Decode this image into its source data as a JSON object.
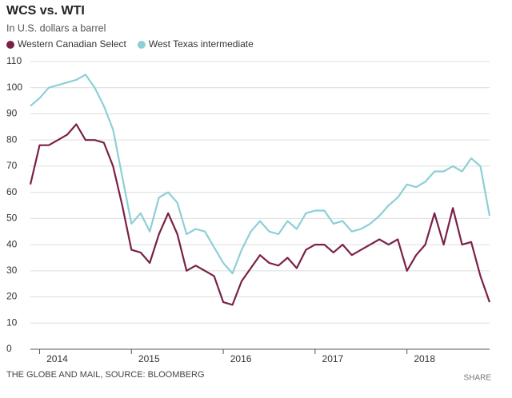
{
  "chart_data": {
    "type": "line",
    "title": "WCS vs. WTI",
    "subtitle": "In U.S. dollars a barrel",
    "source": "THE GLOBE AND MAIL, SOURCE: BLOOMBERG",
    "share": "SHARE",
    "x": [
      2013.9,
      2014.0,
      2014.1,
      2014.2,
      2014.3,
      2014.4,
      2014.5,
      2014.6,
      2014.7,
      2014.8,
      2014.9,
      2015.0,
      2015.1,
      2015.2,
      2015.3,
      2015.4,
      2015.5,
      2015.6,
      2015.7,
      2015.8,
      2015.9,
      2016.0,
      2016.1,
      2016.2,
      2016.3,
      2016.4,
      2016.5,
      2016.6,
      2016.7,
      2016.8,
      2016.9,
      2017.0,
      2017.1,
      2017.2,
      2017.3,
      2017.4,
      2017.5,
      2017.6,
      2017.7,
      2017.8,
      2017.9,
      2018.0,
      2018.1,
      2018.2,
      2018.3,
      2018.4,
      2018.5,
      2018.6,
      2018.7,
      2018.8,
      2018.9
    ],
    "series": [
      {
        "name": "Western Canadian Select",
        "color": "#7a2048",
        "values": [
          63,
          78,
          78,
          80,
          82,
          86,
          80,
          80,
          79,
          70,
          55,
          38,
          37,
          33,
          44,
          52,
          44,
          30,
          32,
          30,
          28,
          18,
          17,
          26,
          31,
          36,
          33,
          32,
          35,
          31,
          38,
          40,
          40,
          37,
          40,
          36,
          38,
          40,
          42,
          40,
          42,
          30,
          36,
          40,
          52,
          40,
          54,
          40,
          41,
          28,
          18
        ]
      },
      {
        "name": "West Texas intermediate",
        "color": "#8ccfd6",
        "values": [
          93,
          96,
          100,
          101,
          102,
          103,
          105,
          100,
          93,
          84,
          66,
          48,
          52,
          45,
          58,
          60,
          56,
          44,
          46,
          45,
          39,
          33,
          29,
          38,
          45,
          49,
          45,
          44,
          49,
          46,
          52,
          53,
          53,
          48,
          49,
          45,
          46,
          48,
          51,
          55,
          58,
          63,
          62,
          64,
          68,
          68,
          70,
          68,
          73,
          70,
          51
        ]
      }
    ],
    "xlim": [
      2013.9,
      2018.9
    ],
    "xticks": [
      2014,
      2015,
      2016,
      2017,
      2018
    ],
    "ylim": [
      0,
      110
    ],
    "yticks": [
      0,
      10,
      20,
      30,
      40,
      50,
      60,
      70,
      80,
      90,
      100,
      110
    ],
    "grid": true
  }
}
